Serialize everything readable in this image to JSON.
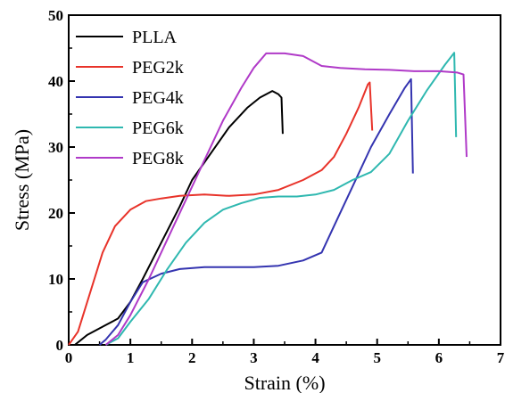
{
  "chart_data": {
    "type": "line",
    "title": "",
    "xlabel": "Strain (%)",
    "ylabel": "Stress (MPa)",
    "xlim": [
      0,
      7
    ],
    "ylim": [
      0,
      50
    ],
    "xticks": [
      "0",
      "1",
      "2",
      "3",
      "4",
      "5",
      "6",
      "7"
    ],
    "yticks": [
      "0",
      "10",
      "20",
      "30",
      "40",
      "50"
    ],
    "grid": false,
    "legend_position": "top-left",
    "series": [
      {
        "name": "PLLA",
        "color": "#000000",
        "points": [
          [
            0.1,
            0
          ],
          [
            0.3,
            1.5
          ],
          [
            0.6,
            3
          ],
          [
            0.8,
            4
          ],
          [
            1.0,
            6.5
          ],
          [
            1.2,
            10
          ],
          [
            1.5,
            15.5
          ],
          [
            1.8,
            21
          ],
          [
            2.0,
            25
          ],
          [
            2.3,
            29
          ],
          [
            2.6,
            33
          ],
          [
            2.9,
            36
          ],
          [
            3.1,
            37.5
          ],
          [
            3.3,
            38.5
          ],
          [
            3.4,
            38
          ],
          [
            3.45,
            37.5
          ],
          [
            3.47,
            32
          ]
        ]
      },
      {
        "name": "PEG2k",
        "color": "#e8332a",
        "points": [
          [
            0,
            0
          ],
          [
            0.15,
            2
          ],
          [
            0.35,
            8
          ],
          [
            0.55,
            14
          ],
          [
            0.75,
            18
          ],
          [
            1.0,
            20.5
          ],
          [
            1.25,
            21.8
          ],
          [
            1.5,
            22.2
          ],
          [
            1.8,
            22.6
          ],
          [
            2.2,
            22.8
          ],
          [
            2.6,
            22.6
          ],
          [
            3.0,
            22.8
          ],
          [
            3.4,
            23.5
          ],
          [
            3.8,
            25
          ],
          [
            4.1,
            26.5
          ],
          [
            4.3,
            28.5
          ],
          [
            4.5,
            32
          ],
          [
            4.7,
            36
          ],
          [
            4.85,
            39.5
          ],
          [
            4.88,
            39.8
          ],
          [
            4.92,
            32.5
          ]
        ]
      },
      {
        "name": "PEG4k",
        "color": "#3434b0",
        "points": [
          [
            0.5,
            0
          ],
          [
            0.6,
            0.8
          ],
          [
            0.8,
            3
          ],
          [
            1.0,
            6.5
          ],
          [
            1.2,
            9.5
          ],
          [
            1.5,
            10.8
          ],
          [
            1.8,
            11.5
          ],
          [
            2.2,
            11.8
          ],
          [
            2.6,
            11.8
          ],
          [
            3.0,
            11.8
          ],
          [
            3.4,
            12
          ],
          [
            3.8,
            12.8
          ],
          [
            4.1,
            14
          ],
          [
            4.3,
            18
          ],
          [
            4.6,
            24
          ],
          [
            4.9,
            30
          ],
          [
            5.2,
            35
          ],
          [
            5.45,
            39
          ],
          [
            5.55,
            40.3
          ],
          [
            5.58,
            26
          ]
        ]
      },
      {
        "name": "PEG6k",
        "color": "#2fb8b0",
        "points": [
          [
            0.6,
            0
          ],
          [
            0.8,
            1
          ],
          [
            1.0,
            3.5
          ],
          [
            1.3,
            7
          ],
          [
            1.6,
            11.5
          ],
          [
            1.9,
            15.5
          ],
          [
            2.2,
            18.5
          ],
          [
            2.5,
            20.5
          ],
          [
            2.8,
            21.5
          ],
          [
            3.1,
            22.3
          ],
          [
            3.4,
            22.5
          ],
          [
            3.7,
            22.5
          ],
          [
            4.0,
            22.8
          ],
          [
            4.3,
            23.5
          ],
          [
            4.6,
            25
          ],
          [
            4.9,
            26.2
          ],
          [
            5.2,
            29
          ],
          [
            5.5,
            34
          ],
          [
            5.8,
            38.5
          ],
          [
            6.1,
            42.5
          ],
          [
            6.25,
            44.3
          ],
          [
            6.28,
            31.5
          ]
        ]
      },
      {
        "name": "PEG8k",
        "color": "#b03ac8",
        "points": [
          [
            0.6,
            0
          ],
          [
            0.8,
            1.5
          ],
          [
            1.0,
            4.5
          ],
          [
            1.3,
            10
          ],
          [
            1.6,
            16
          ],
          [
            1.9,
            22
          ],
          [
            2.2,
            28
          ],
          [
            2.5,
            34
          ],
          [
            2.8,
            39
          ],
          [
            3.0,
            42
          ],
          [
            3.2,
            44.2
          ],
          [
            3.5,
            44.2
          ],
          [
            3.8,
            43.8
          ],
          [
            4.1,
            42.3
          ],
          [
            4.4,
            42
          ],
          [
            4.8,
            41.8
          ],
          [
            5.2,
            41.7
          ],
          [
            5.6,
            41.5
          ],
          [
            6.0,
            41.5
          ],
          [
            6.3,
            41.3
          ],
          [
            6.4,
            41
          ],
          [
            6.45,
            28.5
          ]
        ]
      }
    ]
  }
}
